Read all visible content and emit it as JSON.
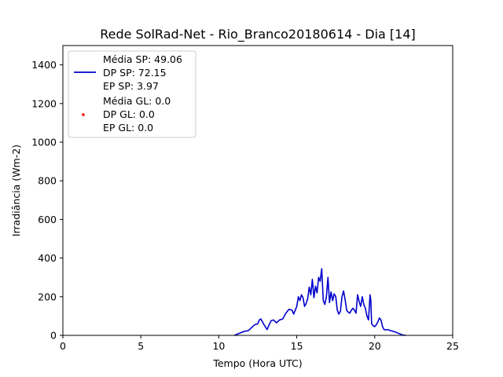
{
  "chart_data": {
    "type": "line",
    "title": "Rede SolRad-Net - Rio_Branco20180614 - Dia [14]",
    "xlabel": "Tempo (Hora UTC)",
    "ylabel": "Irradiância (Wm-2)",
    "xlim": [
      0,
      25
    ],
    "ylim": [
      0,
      1500
    ],
    "xticks": [
      "0",
      "5",
      "10",
      "15",
      "20",
      "25"
    ],
    "yticks": [
      "0",
      "200",
      "400",
      "600",
      "800",
      "1000",
      "1200",
      "1400"
    ],
    "grid": false,
    "legend_position": "top-left",
    "series": [
      {
        "color": "#0000cc",
        "legend_lines": [
          "Média SP: 49.06",
          "DP SP: 72.15",
          "EP SP: 3.97"
        ],
        "x": [
          11.0,
          11.3,
          11.6,
          11.9,
          12.1,
          12.3,
          12.5,
          12.6,
          12.7,
          12.9,
          13.1,
          13.2,
          13.35,
          13.5,
          13.7,
          13.9,
          14.1,
          14.3,
          14.5,
          14.7,
          14.8,
          15.0,
          15.1,
          15.2,
          15.3,
          15.4,
          15.5,
          15.6,
          15.7,
          15.8,
          15.9,
          16.0,
          16.1,
          16.2,
          16.3,
          16.4,
          16.5,
          16.6,
          16.7,
          16.8,
          16.9,
          17.0,
          17.1,
          17.2,
          17.3,
          17.4,
          17.5,
          17.6,
          17.7,
          17.8,
          17.9,
          18.0,
          18.1,
          18.2,
          18.3,
          18.4,
          18.5,
          18.6,
          18.7,
          18.8,
          18.9,
          19.0,
          19.1,
          19.2,
          19.3,
          19.4,
          19.5,
          19.6,
          19.7,
          19.75,
          19.8,
          19.9,
          20.0,
          20.1,
          20.2,
          20.3,
          20.4,
          20.5,
          20.6,
          20.7,
          20.8,
          20.9,
          21.0,
          21.3,
          21.6,
          21.8,
          22.0
        ],
        "y": [
          0,
          10,
          20,
          25,
          40,
          55,
          60,
          80,
          85,
          55,
          30,
          50,
          75,
          80,
          65,
          80,
          85,
          115,
          135,
          130,
          110,
          150,
          200,
          180,
          210,
          195,
          150,
          165,
          190,
          250,
          210,
          290,
          195,
          255,
          220,
          300,
          280,
          345,
          180,
          160,
          200,
          300,
          170,
          225,
          180,
          215,
          200,
          130,
          110,
          125,
          200,
          230,
          185,
          130,
          120,
          115,
          130,
          140,
          130,
          115,
          210,
          175,
          150,
          200,
          160,
          140,
          100,
          80,
          210,
          180,
          60,
          50,
          45,
          55,
          70,
          90,
          80,
          45,
          30,
          28,
          30,
          28,
          25,
          18,
          8,
          2,
          0
        ]
      },
      {
        "color": "#ff0000",
        "legend_lines": [
          "Média GL: 0.0",
          "DP GL: 0.0",
          "EP GL: 0.0"
        ],
        "x": [],
        "y": []
      }
    ]
  }
}
